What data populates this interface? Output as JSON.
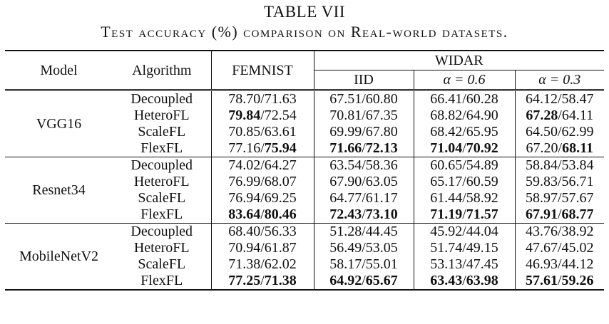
{
  "table_number": "TABLE VII",
  "caption": {
    "p1": "Test accuracy",
    "p2": "(%)",
    "p3": "comparison on Real-world datasets."
  },
  "headers": {
    "model": "Model",
    "algorithm": "Algorithm",
    "femnist": "FEMNIST",
    "widar": "WIDAR",
    "iid": "IID",
    "alpha1": "α = 0.6",
    "alpha2": "α = 0.3"
  },
  "groups": [
    {
      "model": "VGG16",
      "rows": [
        {
          "algo": "Decoupled",
          "femnist": [
            "78.70",
            "71.63"
          ],
          "iid": [
            "67.51",
            "60.80"
          ],
          "a06": [
            "66.41",
            "60.28"
          ],
          "a03": [
            "64.12",
            "58.47"
          ]
        },
        {
          "algo": "HeteroFL",
          "femnist": [
            "79.84",
            "72.54"
          ],
          "iid": [
            "70.81",
            "67.35"
          ],
          "a06": [
            "68.82",
            "64.90"
          ],
          "a03": [
            "67.28",
            "64.11"
          ]
        },
        {
          "algo": "ScaleFL",
          "femnist": [
            "70.85",
            "63.61"
          ],
          "iid": [
            "69.99",
            "67.80"
          ],
          "a06": [
            "68.42",
            "65.95"
          ],
          "a03": [
            "64.50",
            "62.99"
          ]
        },
        {
          "algo": "FlexFL",
          "femnist": [
            "77.16",
            "75.94"
          ],
          "iid": [
            "71.66",
            "72.13"
          ],
          "a06": [
            "71.04",
            "70.92"
          ],
          "a03": [
            "67.20",
            "68.11"
          ]
        }
      ]
    },
    {
      "model": "Resnet34",
      "rows": [
        {
          "algo": "Decoupled",
          "femnist": [
            "74.02",
            "64.27"
          ],
          "iid": [
            "63.54",
            "58.36"
          ],
          "a06": [
            "60.65",
            "54.89"
          ],
          "a03": [
            "58.84",
            "53.84"
          ]
        },
        {
          "algo": "HeteroFL",
          "femnist": [
            "76.99",
            "68.07"
          ],
          "iid": [
            "67.90",
            "63.05"
          ],
          "a06": [
            "65.17",
            "60.59"
          ],
          "a03": [
            "59.83",
            "56.71"
          ]
        },
        {
          "algo": "ScaleFL",
          "femnist": [
            "76.94",
            "69.25"
          ],
          "iid": [
            "64.77",
            "61.17"
          ],
          "a06": [
            "61.44",
            "58.92"
          ],
          "a03": [
            "58.97",
            "57.67"
          ]
        },
        {
          "algo": "FlexFL",
          "femnist": [
            "83.64",
            "80.46"
          ],
          "iid": [
            "72.43",
            "73.10"
          ],
          "a06": [
            "71.19",
            "71.57"
          ],
          "a03": [
            "67.91",
            "68.77"
          ]
        }
      ]
    },
    {
      "model": "MobileNetV2",
      "rows": [
        {
          "algo": "Decoupled",
          "femnist": [
            "68.40",
            "56.33"
          ],
          "iid": [
            "51.28",
            "44.45"
          ],
          "a06": [
            "45.92",
            "44.04"
          ],
          "a03": [
            "43.76",
            "38.92"
          ]
        },
        {
          "algo": "HeteroFL",
          "femnist": [
            "70.94",
            "61.87"
          ],
          "iid": [
            "56.49",
            "53.05"
          ],
          "a06": [
            "51.74",
            "49.15"
          ],
          "a03": [
            "47.67",
            "45.02"
          ]
        },
        {
          "algo": "ScaleFL",
          "femnist": [
            "71.38",
            "62.02"
          ],
          "iid": [
            "58.17",
            "55.01"
          ],
          "a06": [
            "53.13",
            "47.45"
          ],
          "a03": [
            "46.93",
            "44.12"
          ]
        },
        {
          "algo": "FlexFL",
          "femnist": [
            "77.25",
            "71.38"
          ],
          "iid": [
            "64.92",
            "65.67"
          ],
          "a06": [
            "63.43",
            "63.98"
          ],
          "a03": [
            "57.61",
            "59.26"
          ]
        }
      ]
    }
  ],
  "bold": {
    "0": {
      "1": {
        "femnist": [
          true,
          false
        ],
        "a03": [
          true,
          false
        ]
      },
      "3": {
        "femnist": [
          false,
          true
        ],
        "iid": [
          true,
          true
        ],
        "a06": [
          true,
          true
        ],
        "a03": [
          false,
          true
        ]
      }
    },
    "1": {
      "3": {
        "femnist": [
          true,
          true
        ],
        "iid": [
          true,
          true
        ],
        "a06": [
          true,
          true
        ],
        "a03": [
          true,
          true
        ]
      }
    },
    "2": {
      "3": {
        "femnist": [
          true,
          true
        ],
        "iid": [
          true,
          true
        ],
        "a06": [
          true,
          true
        ],
        "a03": [
          true,
          true
        ]
      }
    }
  }
}
